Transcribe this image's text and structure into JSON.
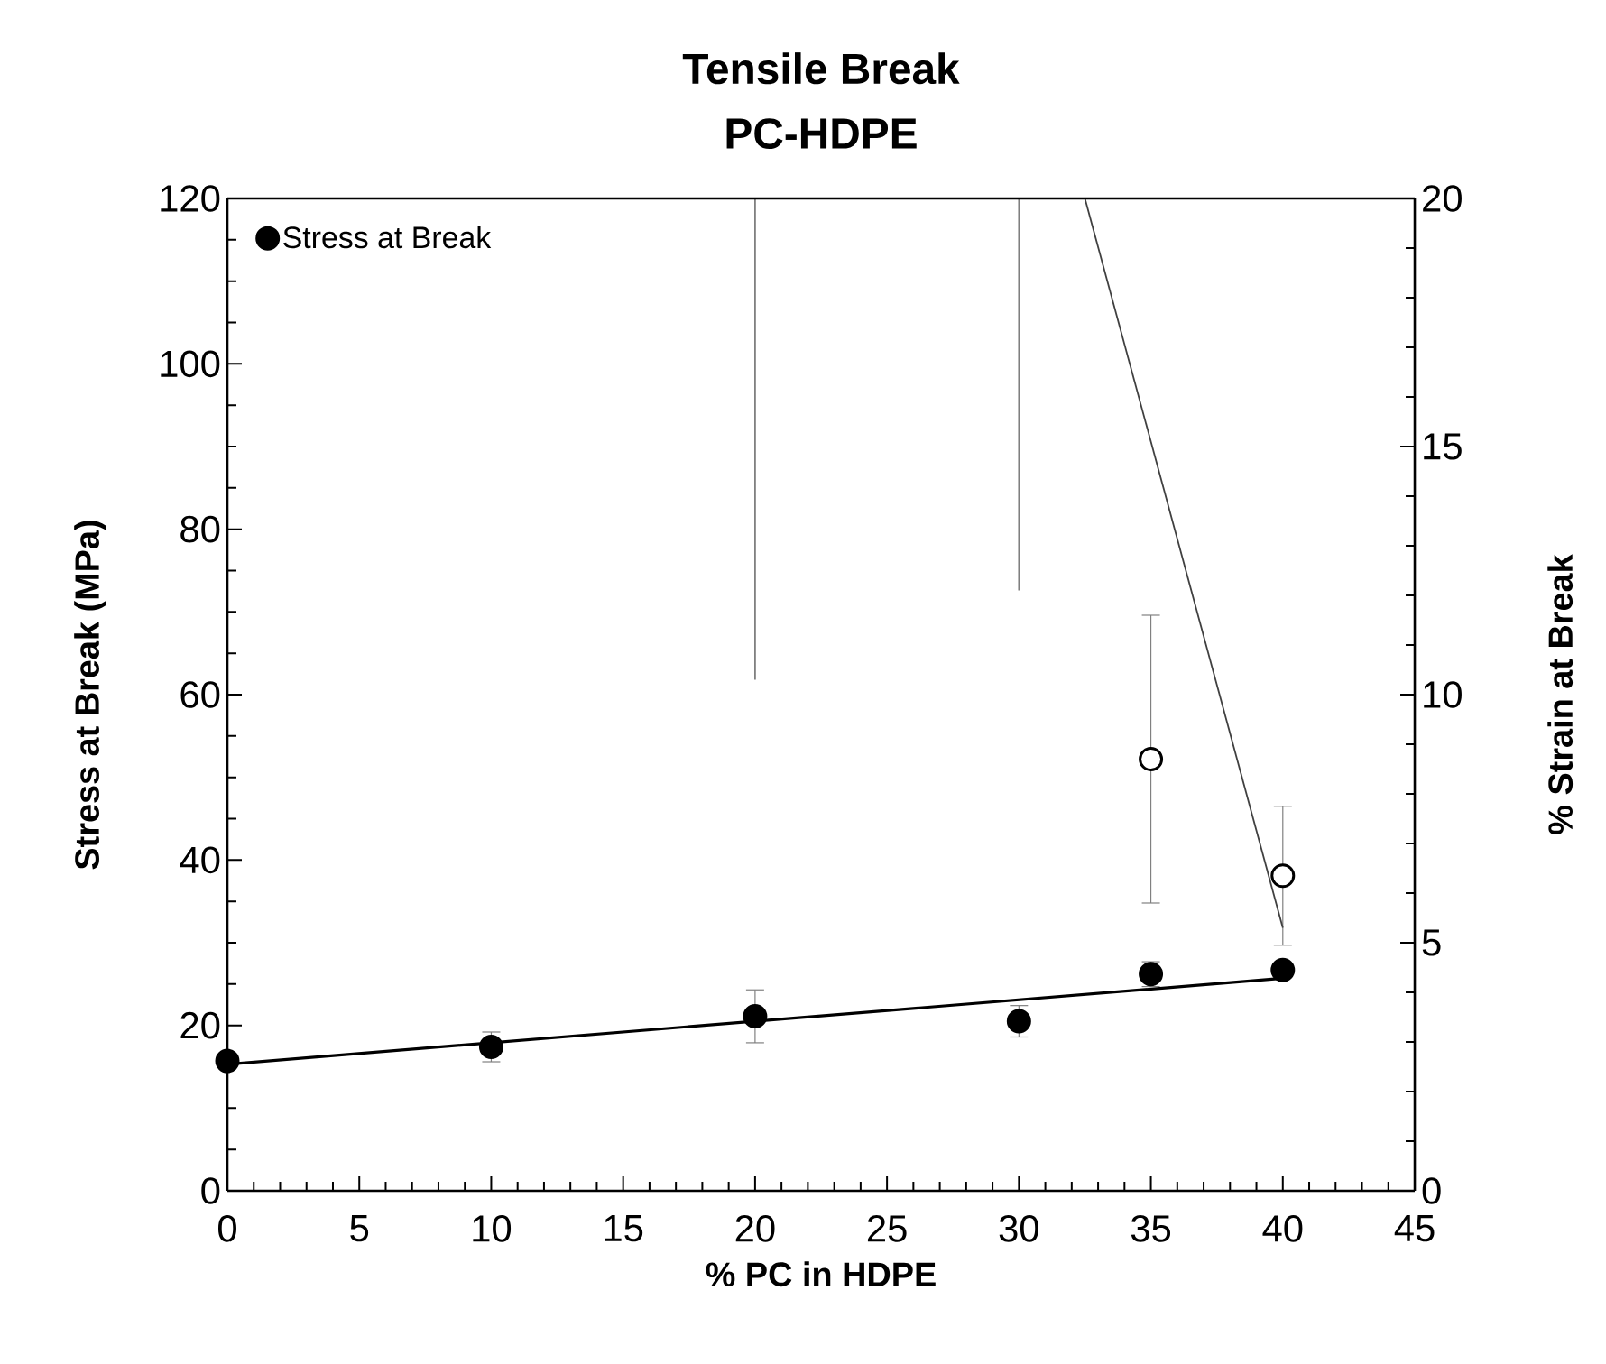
{
  "chart_data": {
    "type": "scatter",
    "title": "Tensile Break",
    "subtitle": "PC-HDPE",
    "xlabel": "% PC in HDPE",
    "ylabel": "Stress at Break (MPa)",
    "y2label": "% Strain at Break",
    "xlim": [
      0,
      45
    ],
    "xticks": [
      0,
      5,
      10,
      15,
      20,
      25,
      30,
      35,
      40,
      45
    ],
    "ylim": [
      0,
      120
    ],
    "yticks": [
      0,
      20,
      40,
      60,
      80,
      100,
      120
    ],
    "y2lim": [
      0,
      20
    ],
    "y2ticks": [
      0,
      5,
      10,
      15,
      20
    ],
    "legend": "top left",
    "series": [
      {
        "name": "Stress at Break",
        "color": "#000000",
        "x": [
          0,
          10,
          20,
          30,
          35,
          40
        ],
        "values": [
          15.7,
          17.4,
          21.1,
          20.5,
          26.2,
          26.7
        ],
        "marker": "circle",
        "errors": [
          null,
          1.8,
          3.2,
          1.9,
          1.5,
          null
        ]
      },
      {
        "type": "line",
        "color": "#000000",
        "x": [
          0,
          40
        ],
        "values": [
          15.3,
          25.7
        ],
        "marker": "none"
      },
      {
        "axis": "y2",
        "color": "#000000",
        "x": [
          35,
          40
        ],
        "values": [
          8.7,
          6.35
        ],
        "marker": "circle",
        "errors": [
          2.9,
          1.4
        ]
      },
      {
        "type": "line",
        "axis": "y2",
        "color": "#404040",
        "x": [
          32.5,
          40
        ],
        "values": [
          20,
          5.3
        ],
        "marker": "none"
      },
      {
        "type": "line",
        "axis": "y2",
        "color": "#7f7f7f",
        "x": [
          20,
          20
        ],
        "values": [
          10.3,
          20
        ],
        "marker": "none"
      },
      {
        "type": "line",
        "axis": "y2",
        "color": "#7f7f7f",
        "x": [
          30,
          30
        ],
        "values": [
          12.1,
          20
        ],
        "marker": "none"
      }
    ]
  }
}
